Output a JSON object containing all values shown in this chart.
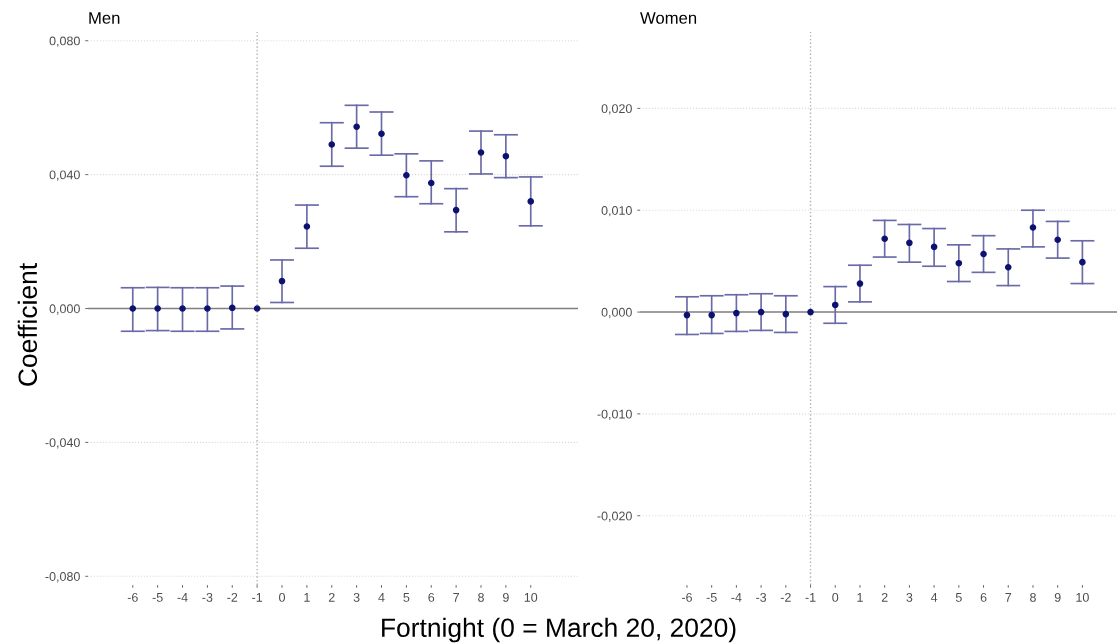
{
  "chart_data": [
    {
      "type": "scatter",
      "title": "Men",
      "ylabel": "Coefficient",
      "xlabel": "Fortnight (0 = March 20, 2020)",
      "x": [
        -6,
        -5,
        -4,
        -3,
        -2,
        -1,
        0,
        1,
        2,
        3,
        4,
        5,
        6,
        7,
        8,
        9,
        10
      ],
      "series": [
        {
          "color": "#0d1270",
          "values": [
            0.0,
            0.0,
            0.0,
            0.0,
            0.0002,
            0.0,
            0.0082,
            0.0245,
            0.049,
            0.0543,
            0.0522,
            0.0398,
            0.0375,
            0.0294,
            0.0466,
            0.0455,
            0.032
          ],
          "errors": [
            [
              -0.0068,
              0.0062
            ],
            [
              -0.0066,
              0.0063
            ],
            [
              -0.0068,
              0.0062
            ],
            [
              -0.0068,
              0.0062
            ],
            [
              -0.0061,
              0.0067
            ],
            null,
            [
              0.0018,
              0.0145
            ],
            [
              0.018,
              0.0309
            ],
            [
              0.0425,
              0.0555
            ],
            [
              0.0479,
              0.0607
            ],
            [
              0.0458,
              0.0587
            ],
            [
              0.0334,
              0.0462
            ],
            [
              0.0313,
              0.0441
            ],
            [
              0.0229,
              0.0358
            ],
            [
              0.0402,
              0.053
            ],
            [
              0.0391,
              0.0519
            ],
            [
              0.0247,
              0.0393
            ]
          ]
        }
      ],
      "xlim": [
        -7.8,
        11.9
      ],
      "xticks": [
        -6,
        -5,
        -4,
        -3,
        -2,
        -1,
        0,
        1,
        2,
        3,
        4,
        5,
        6,
        7,
        8,
        9,
        10
      ],
      "ylim": [
        -0.0826,
        0.0826
      ],
      "yticks": [
        {
          "value": -0.08,
          "label": "-0,080"
        },
        {
          "value": -0.04,
          "label": "-0,040"
        },
        {
          "value": 0,
          "label": "0,000"
        },
        {
          "value": 0.04,
          "label": "0,040"
        },
        {
          "value": 0.08,
          "label": "0,080"
        }
      ],
      "ref_lines": [
        {
          "axis": "y",
          "value": 0,
          "color": "#7f7f7f",
          "line_style": "solid"
        },
        {
          "axis": "x",
          "value": -1,
          "color": "#b0b0b0",
          "line_style": "dotted"
        }
      ],
      "grid": "y",
      "marker": "circle",
      "legend": false
    },
    {
      "type": "scatter",
      "title": "Women",
      "x": [
        -6,
        -5,
        -4,
        -3,
        -2,
        -1,
        0,
        1,
        2,
        3,
        4,
        5,
        6,
        7,
        8,
        9,
        10
      ],
      "series": [
        {
          "color": "#0d1270",
          "values": [
            -0.0003,
            -0.0003,
            -0.0001,
            0.0,
            -0.0002,
            0.0,
            0.0007,
            0.0028,
            0.0072,
            0.0068,
            0.0064,
            0.0048,
            0.0057,
            0.0044,
            0.0083,
            0.0071,
            0.0049
          ],
          "errors": [
            [
              -0.0022,
              0.0015
            ],
            [
              -0.0021,
              0.0016
            ],
            [
              -0.0019,
              0.0017
            ],
            [
              -0.0018,
              0.0018
            ],
            [
              -0.002,
              0.0016
            ],
            null,
            [
              -0.0011,
              0.0025
            ],
            [
              0.001,
              0.0046
            ],
            [
              0.0054,
              0.009
            ],
            [
              0.0049,
              0.0086
            ],
            [
              0.0045,
              0.0082
            ],
            [
              0.003,
              0.0066
            ],
            [
              0.0039,
              0.0075
            ],
            [
              0.0026,
              0.0062
            ],
            [
              0.0064,
              0.01
            ],
            [
              0.0053,
              0.0089
            ],
            [
              0.0028,
              0.007
            ]
          ]
        }
      ],
      "xlim": [
        -7.9,
        11.4
      ],
      "xticks": [
        -6,
        -5,
        -4,
        -3,
        -2,
        -1,
        0,
        1,
        2,
        3,
        4,
        5,
        6,
        7,
        8,
        9,
        10
      ],
      "ylim": [
        -0.0268,
        0.0275
      ],
      "yticks": [
        {
          "value": -0.02,
          "label": "-0,020"
        },
        {
          "value": -0.01,
          "label": "-0,010"
        },
        {
          "value": 0,
          "label": "0,000"
        },
        {
          "value": 0.01,
          "label": "0,010"
        },
        {
          "value": 0.02,
          "label": "0,020"
        }
      ],
      "ref_lines": [
        {
          "axis": "y",
          "value": 0,
          "color": "#7f7f7f",
          "line_style": "solid"
        },
        {
          "axis": "x",
          "value": -1,
          "color": "#b0b0b0",
          "line_style": "dotted"
        }
      ],
      "grid": "y",
      "marker": "circle",
      "legend": false
    }
  ]
}
